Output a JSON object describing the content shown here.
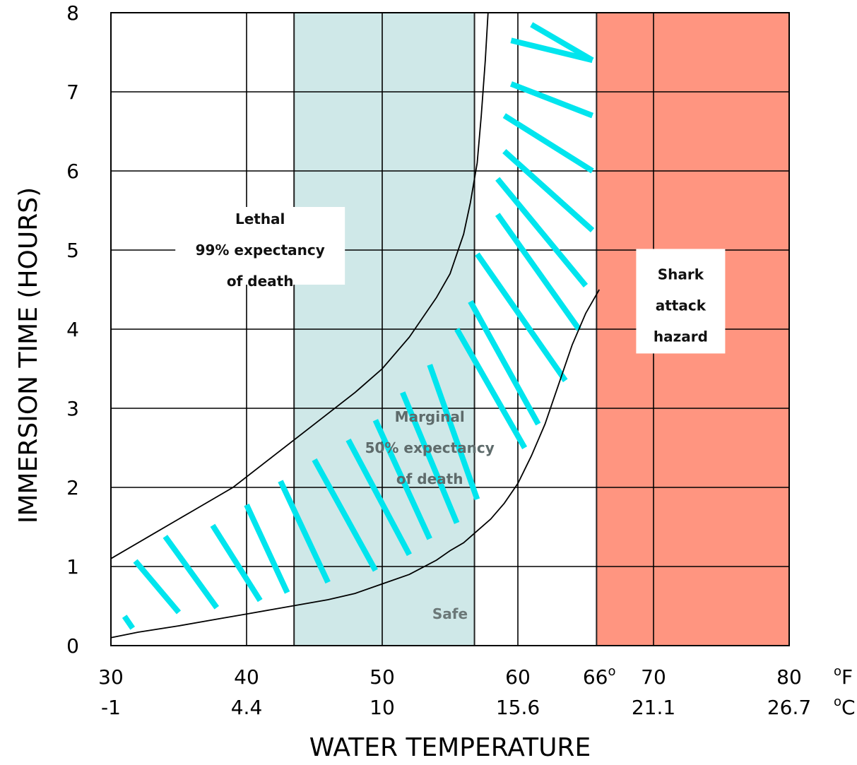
{
  "chart_data": {
    "type": "line",
    "xlabel": "WATER TEMPERATURE",
    "ylabel": "IMMERSION TIME (HOURS)",
    "xlim": [
      30,
      80
    ],
    "ylim": [
      0,
      8
    ],
    "x_ticks_f": [
      "30",
      "40",
      "50",
      "60",
      "66o",
      "70",
      "80"
    ],
    "x_tick_values": [
      30,
      40,
      50,
      60,
      66,
      70,
      80
    ],
    "x_ticks_c": [
      "-1",
      "4.4",
      "10",
      "15.6",
      "21.1",
      "26.7"
    ],
    "x_tick_c_positions": [
      30,
      40,
      50,
      60,
      70,
      80
    ],
    "unit_f": "oF",
    "unit_c": "oC",
    "y_ticks": [
      "0",
      "1",
      "2",
      "3",
      "4",
      "5",
      "6",
      "7",
      "8"
    ],
    "grid": true,
    "series": [
      {
        "x": [
          30,
          32,
          35,
          38,
          40,
          42,
          44,
          46,
          48,
          50,
          52,
          54,
          55,
          56,
          57,
          58,
          59,
          60,
          61,
          62,
          63,
          64,
          65,
          66
        ],
        "y": [
          0.1,
          0.17,
          0.25,
          0.34,
          0.4,
          0.46,
          0.52,
          0.58,
          0.66,
          0.78,
          0.9,
          1.08,
          1.2,
          1.3,
          1.45,
          1.6,
          1.8,
          2.05,
          2.4,
          2.8,
          3.3,
          3.8,
          4.2,
          4.5
        ],
        "color": "#000000"
      },
      {
        "x": [
          30,
          33,
          36,
          39,
          42,
          45,
          48,
          50,
          52,
          54,
          55,
          56,
          56.5,
          57,
          57.3,
          57.6,
          57.8
        ],
        "y": [
          1.1,
          1.4,
          1.7,
          2.0,
          2.4,
          2.8,
          3.2,
          3.5,
          3.9,
          4.4,
          4.7,
          5.2,
          5.6,
          6.1,
          6.7,
          7.4,
          8.0
        ],
        "color": "#000000"
      }
    ],
    "regions": [
      {
        "x": [
          43.5,
          56.8
        ],
        "color": "#cfe8e8"
      },
      {
        "x": [
          65.8,
          80
        ],
        "color": "#ff9580"
      }
    ],
    "hatch_color": "#00e5ee",
    "annotations": [
      {
        "lines": [
          "Lethal",
          "99% expectancy",
          "of death"
        ],
        "x": 41,
        "y": 5.0
      },
      {
        "lines": [
          "Marginal",
          "50% expectancy",
          "of death"
        ],
        "x": 53.5,
        "y": 2.5
      },
      {
        "lines": [
          "Safe"
        ],
        "x": 55,
        "y": 0.4
      },
      {
        "lines": [
          "Shark",
          "attack",
          "hazard"
        ],
        "x": 72,
        "y": 4.3
      }
    ]
  }
}
